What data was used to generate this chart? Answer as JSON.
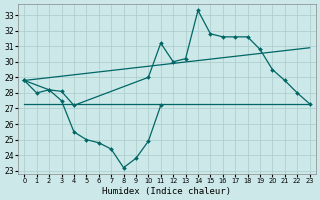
{
  "xlabel": "Humidex (Indice chaleur)",
  "bg_color": "#cce8e8",
  "grid_color": "#aacccc",
  "line_color": "#006666",
  "xlim": [
    -0.5,
    23.5
  ],
  "ylim": [
    22.8,
    33.7
  ],
  "yticks": [
    23,
    24,
    25,
    26,
    27,
    28,
    29,
    30,
    31,
    32,
    33
  ],
  "xticks": [
    0,
    1,
    2,
    3,
    4,
    5,
    6,
    7,
    8,
    9,
    10,
    11,
    12,
    13,
    14,
    15,
    16,
    17,
    18,
    19,
    20,
    21,
    22,
    23
  ],
  "curve_min_x": [
    0,
    1,
    2,
    3,
    4,
    5,
    6,
    7,
    8,
    9,
    10,
    11
  ],
  "curve_min_y": [
    28.8,
    28.0,
    28.2,
    27.5,
    25.5,
    25.0,
    24.8,
    24.4,
    23.2,
    23.8,
    24.9,
    27.2
  ],
  "curve_max_x": [
    0,
    2,
    3,
    4,
    10,
    11,
    12,
    13,
    14,
    15,
    16,
    17,
    18,
    19,
    20,
    21,
    22,
    23
  ],
  "curve_max_y": [
    28.8,
    28.2,
    28.1,
    27.2,
    29.0,
    31.2,
    30.0,
    30.2,
    33.3,
    31.8,
    31.6,
    31.6,
    31.6,
    30.8,
    29.5,
    28.8,
    28.0,
    27.3
  ],
  "trend_line1_x": [
    0,
    23
  ],
  "trend_line1_y": [
    28.8,
    30.9
  ],
  "trend_line2_x": [
    0,
    23
  ],
  "trend_line2_y": [
    28.8,
    27.3
  ],
  "hline_x": [
    0,
    23
  ],
  "hline_y": [
    27.3,
    27.3
  ]
}
